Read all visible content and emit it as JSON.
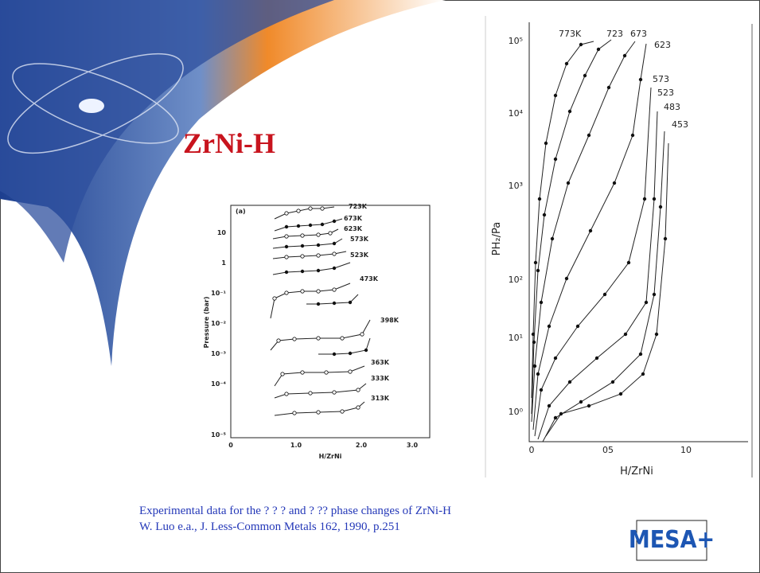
{
  "slide": {
    "title": "ZrNi-H",
    "caption": [
      "Experimental data for the ? ? ? and ? ?? phase changes of ZrNi-H",
      "W. Luo e.a., J. Less-Common Metals 162, 1990, p.251"
    ],
    "logo": "MESA+"
  },
  "figure_left": {
    "panel": "(a)",
    "x_label": "H/ZrNi",
    "y_label": "Pressure (bar)",
    "x_ticks": [
      "0",
      "1.0",
      "2.0",
      "3.0"
    ],
    "y_ticks": [
      "10",
      "1",
      "10⁻¹",
      "10⁻²",
      "10⁻³",
      "10⁻⁴",
      "10⁻⁵"
    ],
    "curve_labels": [
      "723K",
      "673K",
      "623K",
      "573K",
      "523K",
      "473K",
      "398K",
      "363K",
      "333K",
      "313K"
    ]
  },
  "figure_right": {
    "x_label": "H/ZrNi",
    "y_label": "PH₂/Pa",
    "x_ticks": [
      "0",
      "05",
      "10"
    ],
    "y_ticks": [
      "10⁵",
      "10⁴",
      "10³",
      "10²",
      "10¹",
      "10⁰"
    ],
    "curve_labels": [
      "773K",
      "723",
      "673",
      "623",
      "573",
      "523",
      "483",
      "453"
    ]
  }
}
